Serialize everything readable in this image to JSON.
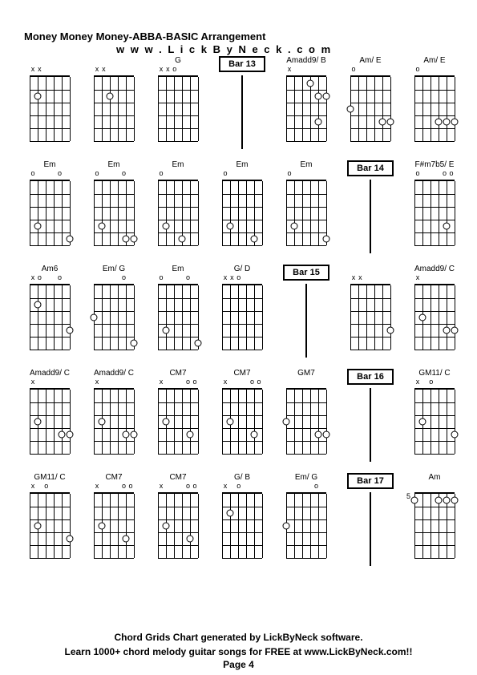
{
  "header": {
    "title": "Money Money Money-ABBA-BASIC Arrangement",
    "subtitle": "w w w . L i c k B y N e c k . c o m"
  },
  "footer": {
    "line1": "Chord Grids Chart generated by LickByNeck software.",
    "line2": "Learn 1000+ chord melody guitar songs for FREE at www.LickByNeck.com!!",
    "page": "Page 4"
  },
  "colors": {
    "background": "#ffffff",
    "text": "#000000",
    "line": "#000000"
  },
  "diagram": {
    "strings": 6,
    "frets": 5,
    "width": 50,
    "height": 80,
    "string_spacing": 10,
    "fret_spacing": 16
  },
  "rows": [
    {
      "cells": [
        {
          "type": "chord",
          "name": "",
          "markers": [
            "x",
            "x",
            "",
            "",
            "",
            ""
          ],
          "dots": [
            [
              2,
              2
            ]
          ]
        },
        {
          "type": "chord",
          "name": "",
          "markers": [
            "x",
            "x",
            "",
            "",
            "",
            ""
          ],
          "dots": [
            [
              2,
              3
            ]
          ]
        },
        {
          "type": "chord",
          "name": "G",
          "markers": [
            "x",
            "x",
            "o",
            "",
            "",
            ""
          ],
          "dots": []
        },
        {
          "type": "bar",
          "label": "Bar 13"
        },
        {
          "type": "chord",
          "name": "Amadd9/ B",
          "markers": [
            "x",
            "",
            "",
            "",
            "",
            ""
          ],
          "dots": [
            [
              1,
              4
            ],
            [
              2,
              5
            ],
            [
              2,
              6
            ],
            [
              4,
              5
            ]
          ]
        },
        {
          "type": "chord",
          "name": "Am/ E",
          "markers": [
            "o",
            "",
            "",
            "",
            "",
            ""
          ],
          "dots": [
            [
              3,
              1
            ],
            [
              4,
              5
            ],
            [
              4,
              6
            ]
          ]
        },
        {
          "type": "chord",
          "name": "Am/ E",
          "markers": [
            "o",
            "",
            "",
            "",
            "",
            ""
          ],
          "dots": [
            [
              4,
              4
            ],
            [
              4,
              5
            ],
            [
              4,
              6
            ]
          ]
        }
      ]
    },
    {
      "cells": [
        {
          "type": "chord",
          "name": "Em",
          "markers": [
            "o",
            "",
            "",
            "",
            "o",
            ""
          ],
          "dots": [
            [
              4,
              2
            ],
            [
              5,
              6
            ]
          ]
        },
        {
          "type": "chord",
          "name": "Em",
          "markers": [
            "o",
            "",
            "",
            "",
            "o",
            ""
          ],
          "dots": [
            [
              4,
              2
            ],
            [
              5,
              5
            ],
            [
              5,
              6
            ]
          ]
        },
        {
          "type": "chord",
          "name": "Em",
          "markers": [
            "o",
            "",
            "",
            "",
            "",
            ""
          ],
          "dots": [
            [
              4,
              2
            ],
            [
              5,
              4
            ]
          ]
        },
        {
          "type": "chord",
          "name": "Em",
          "markers": [
            "o",
            "",
            "",
            "",
            "",
            ""
          ],
          "dots": [
            [
              4,
              2
            ],
            [
              5,
              5
            ]
          ]
        },
        {
          "type": "chord",
          "name": "Em",
          "markers": [
            "o",
            "",
            "",
            "",
            "",
            ""
          ],
          "dots": [
            [
              4,
              2
            ],
            [
              5,
              6
            ]
          ]
        },
        {
          "type": "bar",
          "label": "Bar 14"
        },
        {
          "type": "chord",
          "name": "F#m7b5/ E",
          "markers": [
            "o",
            "",
            "",
            "",
            "o",
            "o"
          ],
          "dots": [
            [
              4,
              5
            ]
          ]
        }
      ]
    },
    {
      "cells": [
        {
          "type": "chord",
          "name": "Am6",
          "markers": [
            "x",
            "o",
            "",
            "",
            "o",
            ""
          ],
          "dots": [
            [
              2,
              2
            ],
            [
              4,
              6
            ]
          ]
        },
        {
          "type": "chord",
          "name": "Em/ G",
          "markers": [
            "",
            "",
            "",
            "",
            "o",
            ""
          ],
          "dots": [
            [
              3,
              1
            ],
            [
              5,
              6
            ]
          ]
        },
        {
          "type": "chord",
          "name": "Em",
          "markers": [
            "o",
            "",
            "",
            "",
            "o",
            ""
          ],
          "dots": [
            [
              4,
              2
            ],
            [
              5,
              6
            ]
          ]
        },
        {
          "type": "chord",
          "name": "G/ D",
          "markers": [
            "x",
            "x",
            "o",
            "",
            "",
            ""
          ],
          "dots": []
        },
        {
          "type": "bar",
          "label": "Bar 15"
        },
        {
          "type": "chord",
          "name": "",
          "markers": [
            "x",
            "x",
            "",
            "",
            "",
            ""
          ],
          "dots": [
            [
              4,
              6
            ]
          ]
        },
        {
          "type": "chord",
          "name": "Amadd9/ C",
          "markers": [
            "x",
            "",
            "",
            "",
            "",
            ""
          ],
          "dots": [
            [
              3,
              2
            ],
            [
              4,
              5
            ],
            [
              4,
              6
            ]
          ]
        }
      ]
    },
    {
      "cells": [
        {
          "type": "chord",
          "name": "Amadd9/ C",
          "markers": [
            "x",
            "",
            "",
            "",
            "",
            ""
          ],
          "dots": [
            [
              3,
              2
            ],
            [
              4,
              5
            ],
            [
              4,
              6
            ]
          ]
        },
        {
          "type": "chord",
          "name": "Amadd9/ C",
          "markers": [
            "x",
            "",
            "",
            "",
            "",
            ""
          ],
          "dots": [
            [
              3,
              2
            ],
            [
              4,
              5
            ],
            [
              4,
              6
            ]
          ]
        },
        {
          "type": "chord",
          "name": "CM7",
          "markers": [
            "x",
            "",
            "",
            "",
            "o",
            "o"
          ],
          "dots": [
            [
              3,
              2
            ],
            [
              4,
              5
            ]
          ]
        },
        {
          "type": "chord",
          "name": "CM7",
          "markers": [
            "x",
            "",
            "",
            "",
            "o",
            "o"
          ],
          "dots": [
            [
              3,
              2
            ],
            [
              4,
              5
            ]
          ]
        },
        {
          "type": "chord",
          "name": "GM7",
          "markers": [
            "",
            "",
            "",
            "",
            "",
            ""
          ],
          "dots": [
            [
              3,
              1
            ],
            [
              4,
              5
            ],
            [
              4,
              6
            ]
          ]
        },
        {
          "type": "bar",
          "label": "Bar 16"
        },
        {
          "type": "chord",
          "name": "GM11/ C",
          "markers": [
            "x",
            "",
            "o",
            "",
            "",
            ""
          ],
          "dots": [
            [
              3,
              2
            ],
            [
              4,
              6
            ]
          ]
        }
      ]
    },
    {
      "cells": [
        {
          "type": "chord",
          "name": "GM11/ C",
          "markers": [
            "x",
            "",
            "o",
            "",
            "",
            ""
          ],
          "dots": [
            [
              3,
              2
            ],
            [
              4,
              6
            ]
          ]
        },
        {
          "type": "chord",
          "name": "CM7",
          "markers": [
            "x",
            "",
            "",
            "",
            "o",
            "o"
          ],
          "dots": [
            [
              3,
              2
            ],
            [
              4,
              5
            ]
          ]
        },
        {
          "type": "chord",
          "name": "CM7",
          "markers": [
            "x",
            "",
            "",
            "",
            "o",
            "o"
          ],
          "dots": [
            [
              3,
              2
            ],
            [
              4,
              5
            ]
          ]
        },
        {
          "type": "chord",
          "name": "G/ B",
          "markers": [
            "x",
            "",
            "o",
            "",
            "",
            ""
          ],
          "dots": [
            [
              2,
              2
            ]
          ]
        },
        {
          "type": "chord",
          "name": "Em/ G",
          "markers": [
            "",
            "",
            "",
            "",
            "o",
            ""
          ],
          "dots": [
            [
              3,
              1
            ]
          ]
        },
        {
          "type": "bar",
          "label": "Bar 17"
        },
        {
          "type": "chord",
          "name": "Am",
          "markers": [
            "",
            "",
            "",
            "",
            "",
            ""
          ],
          "fret_label": "5",
          "dots": [
            [
              1,
              1
            ],
            [
              1,
              4
            ],
            [
              1,
              5
            ],
            [
              1,
              6
            ]
          ]
        }
      ]
    }
  ]
}
